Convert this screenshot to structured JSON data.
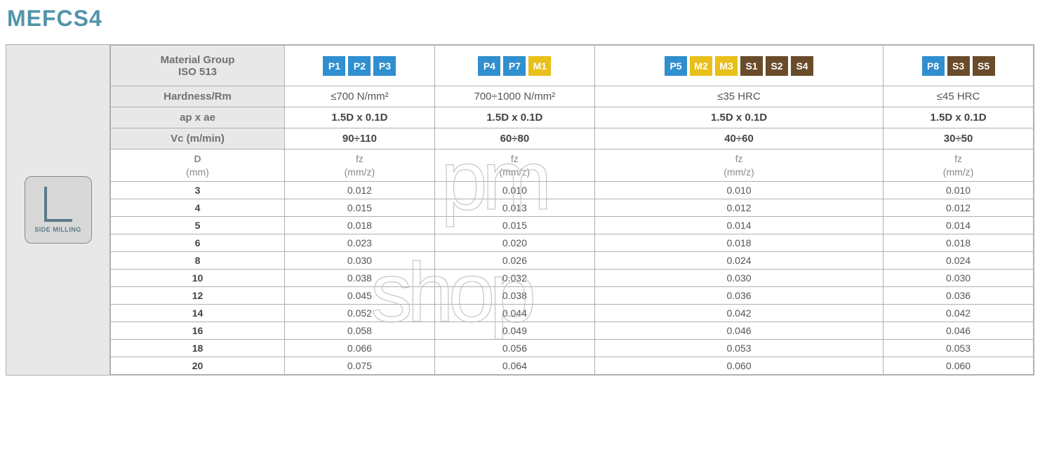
{
  "title": "MEFCS4",
  "icon_caption": "SIDE MILLING",
  "colors": {
    "P": "#2f8fcf",
    "M": "#e9bf1a",
    "S": "#6a4b2a",
    "header_bg": "#e8e8e8",
    "border": "#b0b0b0"
  },
  "row_labels": {
    "material_group_l1": "Material Group",
    "material_group_l2": "ISO 513",
    "hardness": "Hardness/Rm",
    "apae": "ap x ae",
    "vc": "Vc (m/min)",
    "d_l1": "D",
    "d_l2": "(mm)",
    "fz_l1": "fz",
    "fz_l2": "(mm/z)"
  },
  "groups": [
    {
      "chips": [
        {
          "label": "P1",
          "color": "#2f8fcf"
        },
        {
          "label": "P2",
          "color": "#2f8fcf"
        },
        {
          "label": "P3",
          "color": "#2f8fcf"
        }
      ],
      "hardness": "≤700 N/mm²",
      "apae": "1.5D x 0.1D",
      "vc": "90÷110"
    },
    {
      "chips": [
        {
          "label": "P4",
          "color": "#2f8fcf"
        },
        {
          "label": "P7",
          "color": "#2f8fcf"
        },
        {
          "label": "M1",
          "color": "#e9bf1a"
        }
      ],
      "hardness": "700÷1000 N/mm²",
      "apae": "1.5D x 0.1D",
      "vc": "60÷80"
    },
    {
      "chips": [
        {
          "label": "P5",
          "color": "#2f8fcf"
        },
        {
          "label": "M2",
          "color": "#e9bf1a"
        },
        {
          "label": "M3",
          "color": "#e9bf1a"
        },
        {
          "label": "S1",
          "color": "#6a4b2a"
        },
        {
          "label": "S2",
          "color": "#6a4b2a"
        },
        {
          "label": "S4",
          "color": "#6a4b2a"
        }
      ],
      "hardness": "≤35 HRC",
      "apae": "1.5D x 0.1D",
      "vc": "40÷60"
    },
    {
      "chips": [
        {
          "label": "P8",
          "color": "#2f8fcf"
        },
        {
          "label": "S3",
          "color": "#6a4b2a"
        },
        {
          "label": "S5",
          "color": "#6a4b2a"
        }
      ],
      "hardness": "≤45 HRC",
      "apae": "1.5D x 0.1D",
      "vc": "30÷50"
    }
  ],
  "diameters": [
    "3",
    "4",
    "5",
    "6",
    "8",
    "10",
    "12",
    "14",
    "16",
    "18",
    "20"
  ],
  "fz": [
    [
      "0.012",
      "0.010",
      "0.010",
      "0.010"
    ],
    [
      "0.015",
      "0.013",
      "0.012",
      "0.012"
    ],
    [
      "0.018",
      "0.015",
      "0.014",
      "0.014"
    ],
    [
      "0.023",
      "0.020",
      "0.018",
      "0.018"
    ],
    [
      "0.030",
      "0.026",
      "0.024",
      "0.024"
    ],
    [
      "0.038",
      "0.032",
      "0.030",
      "0.030"
    ],
    [
      "0.045",
      "0.038",
      "0.036",
      "0.036"
    ],
    [
      "0.052",
      "0.044",
      "0.042",
      "0.042"
    ],
    [
      "0.058",
      "0.049",
      "0.046",
      "0.046"
    ],
    [
      "0.066",
      "0.056",
      "0.053",
      "0.053"
    ],
    [
      "0.075",
      "0.064",
      "0.060",
      "0.060"
    ]
  ],
  "watermark1": "pm",
  "watermark2": "shop"
}
